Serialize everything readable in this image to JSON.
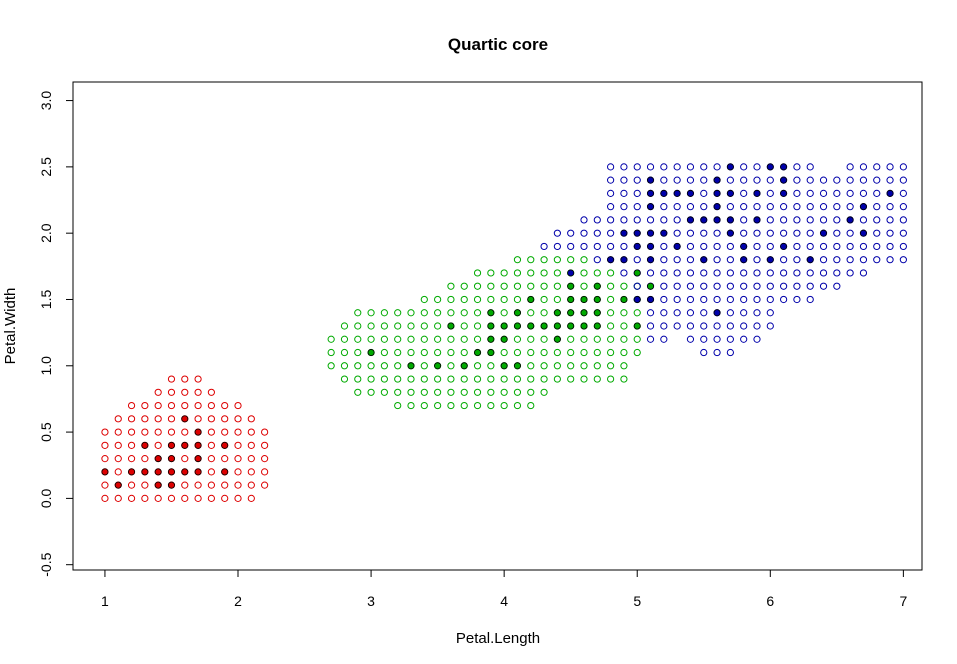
{
  "chart_data": {
    "type": "scatter",
    "title": "Quartic core",
    "xlabel": "Petal.Length",
    "ylabel": "Petal.Width",
    "xlim": [
      0.76,
      7.14
    ],
    "ylim": [
      -0.54,
      3.14
    ],
    "x_ticks": [
      1,
      2,
      3,
      4,
      5,
      6,
      7
    ],
    "y_ticks": [
      -0.5,
      0.0,
      0.5,
      1.0,
      1.5,
      2.0,
      2.5,
      3.0
    ],
    "x_tick_labels": [
      "1",
      "2",
      "3",
      "4",
      "5",
      "6",
      "7"
    ],
    "y_tick_labels": [
      "-0.5",
      "0.0",
      "0.5",
      "1.0",
      "1.5",
      "2.0",
      "2.5",
      "3.0"
    ],
    "grid": false,
    "grid_step": {
      "x": 0.1,
      "y": 0.1
    },
    "colors": {
      "setosa": "#dd0000",
      "versicolor": "#00aa00",
      "virginica": "#0000aa"
    },
    "series": [
      {
        "marker": "open-circle",
        "color": "#dd0000",
        "rows": [
          {
            "y": 0.0,
            "x_from": 1.0,
            "x_to": 2.1
          },
          {
            "y": 0.1,
            "x_from": 1.0,
            "x_to": 2.2
          },
          {
            "y": 0.2,
            "x_from": 1.0,
            "x_to": 2.2
          },
          {
            "y": 0.3,
            "x_from": 1.0,
            "x_to": 2.2
          },
          {
            "y": 0.4,
            "x_from": 1.0,
            "x_to": 2.2
          },
          {
            "y": 0.5,
            "x_from": 1.0,
            "x_to": 2.2
          },
          {
            "y": 0.6,
            "x_from": 1.1,
            "x_to": 2.1
          },
          {
            "y": 0.7,
            "x_from": 1.2,
            "x_to": 2.0
          },
          {
            "y": 0.8,
            "x_from": 1.4,
            "x_to": 1.8
          },
          {
            "y": 0.9,
            "x_from": 1.5,
            "x_to": 1.7
          }
        ]
      },
      {
        "marker": "open-circle",
        "color": "#00aa00",
        "rows": [
          {
            "y": 0.7,
            "x_from": 3.2,
            "x_to": 4.2
          },
          {
            "y": 0.8,
            "x_from": 2.9,
            "x_to": 4.3
          },
          {
            "y": 0.9,
            "x_from": 2.8,
            "x_to": 4.9
          },
          {
            "y": 1.0,
            "x_from": 2.7,
            "x_to": 4.9
          },
          {
            "y": 1.1,
            "x_from": 2.7,
            "x_to": 5.0
          },
          {
            "y": 1.2,
            "x_from": 2.7,
            "x_to": 5.0
          },
          {
            "y": 1.3,
            "x_from": 2.8,
            "x_to": 5.0
          },
          {
            "y": 1.4,
            "x_from": 2.9,
            "x_to": 5.0
          },
          {
            "y": 1.5,
            "x_from": 3.4,
            "x_to": 5.0
          },
          {
            "y": 1.6,
            "x_from": 3.6,
            "x_to": 5.0
          },
          {
            "y": 1.7,
            "x_from": 3.8,
            "x_to": 4.8
          },
          {
            "y": 1.8,
            "x_from": 4.1,
            "x_to": 4.6
          }
        ]
      },
      {
        "marker": "open-circle",
        "color": "#0000aa",
        "rows": [
          {
            "y": 1.1,
            "x_from": 5.5,
            "x_to": 5.7
          },
          {
            "y": 1.2,
            "x_from": 5.1,
            "x_to": 5.2
          },
          {
            "y": 1.2,
            "x_from": 5.4,
            "x_to": 5.9
          },
          {
            "y": 1.3,
            "x_from": 5.1,
            "x_to": 6.0
          },
          {
            "y": 1.4,
            "x_from": 5.1,
            "x_to": 6.0
          },
          {
            "y": 1.5,
            "x_from": 5.0,
            "x_to": 6.3
          },
          {
            "y": 1.6,
            "x_from": 5.0,
            "x_to": 6.5
          },
          {
            "y": 1.7,
            "x_from": 4.9,
            "x_to": 6.7
          },
          {
            "y": 1.8,
            "x_from": 4.7,
            "x_to": 7.0
          },
          {
            "y": 1.9,
            "x_from": 4.3,
            "x_to": 7.0
          },
          {
            "y": 2.0,
            "x_from": 4.4,
            "x_to": 7.0
          },
          {
            "y": 2.1,
            "x_from": 4.6,
            "x_to": 7.0
          },
          {
            "y": 2.2,
            "x_from": 4.8,
            "x_to": 7.0
          },
          {
            "y": 2.3,
            "x_from": 4.8,
            "x_to": 7.0
          },
          {
            "y": 2.4,
            "x_from": 4.8,
            "x_to": 7.0
          },
          {
            "y": 2.5,
            "x_from": 4.8,
            "x_to": 6.3
          },
          {
            "y": 2.5,
            "x_from": 6.6,
            "x_to": 7.0
          }
        ]
      }
    ],
    "filled_points": [
      {
        "color": "#dd0000",
        "points": [
          [
            1.1,
            0.1
          ],
          [
            1.4,
            0.1
          ],
          [
            1.5,
            0.1
          ],
          [
            1.0,
            0.2
          ],
          [
            1.2,
            0.2
          ],
          [
            1.3,
            0.2
          ],
          [
            1.4,
            0.2
          ],
          [
            1.5,
            0.2
          ],
          [
            1.6,
            0.2
          ],
          [
            1.7,
            0.2
          ],
          [
            1.9,
            0.2
          ],
          [
            1.4,
            0.3
          ],
          [
            1.5,
            0.3
          ],
          [
            1.7,
            0.3
          ],
          [
            1.3,
            0.4
          ],
          [
            1.5,
            0.4
          ],
          [
            1.6,
            0.4
          ],
          [
            1.7,
            0.4
          ],
          [
            1.9,
            0.4
          ],
          [
            1.7,
            0.5
          ],
          [
            1.6,
            0.6
          ]
        ]
      },
      {
        "color": "#00aa00",
        "points": [
          [
            3.3,
            1.0
          ],
          [
            3.5,
            1.0
          ],
          [
            3.7,
            1.0
          ],
          [
            4.0,
            1.0
          ],
          [
            4.1,
            1.0
          ],
          [
            3.0,
            1.1
          ],
          [
            3.8,
            1.1
          ],
          [
            3.9,
            1.1
          ],
          [
            3.9,
            1.2
          ],
          [
            4.0,
            1.2
          ],
          [
            4.4,
            1.2
          ],
          [
            3.6,
            1.3
          ],
          [
            3.9,
            1.3
          ],
          [
            4.0,
            1.3
          ],
          [
            4.1,
            1.3
          ],
          [
            4.2,
            1.3
          ],
          [
            4.3,
            1.3
          ],
          [
            4.4,
            1.3
          ],
          [
            4.5,
            1.3
          ],
          [
            4.6,
            1.3
          ],
          [
            4.7,
            1.3
          ],
          [
            5.0,
            1.3
          ],
          [
            3.9,
            1.4
          ],
          [
            4.1,
            1.4
          ],
          [
            4.4,
            1.4
          ],
          [
            4.5,
            1.4
          ],
          [
            4.6,
            1.4
          ],
          [
            4.7,
            1.4
          ],
          [
            4.2,
            1.5
          ],
          [
            4.5,
            1.5
          ],
          [
            4.6,
            1.5
          ],
          [
            4.7,
            1.5
          ],
          [
            4.9,
            1.5
          ],
          [
            4.5,
            1.6
          ],
          [
            4.7,
            1.6
          ],
          [
            5.1,
            1.6
          ],
          [
            5.0,
            1.7
          ]
        ]
      },
      {
        "color": "#0000aa",
        "points": [
          [
            5.6,
            1.4
          ],
          [
            5.0,
            1.5
          ],
          [
            5.1,
            1.5
          ],
          [
            4.5,
            1.7
          ],
          [
            4.8,
            1.8
          ],
          [
            4.9,
            1.8
          ],
          [
            5.1,
            1.8
          ],
          [
            5.5,
            1.8
          ],
          [
            5.8,
            1.8
          ],
          [
            6.0,
            1.8
          ],
          [
            6.3,
            1.8
          ],
          [
            5.0,
            1.9
          ],
          [
            5.1,
            1.9
          ],
          [
            5.3,
            1.9
          ],
          [
            5.8,
            1.9
          ],
          [
            6.1,
            1.9
          ],
          [
            4.9,
            2.0
          ],
          [
            5.0,
            2.0
          ],
          [
            5.1,
            2.0
          ],
          [
            5.2,
            2.0
          ],
          [
            5.7,
            2.0
          ],
          [
            6.4,
            2.0
          ],
          [
            6.7,
            2.0
          ],
          [
            5.4,
            2.1
          ],
          [
            5.5,
            2.1
          ],
          [
            5.6,
            2.1
          ],
          [
            5.7,
            2.1
          ],
          [
            5.9,
            2.1
          ],
          [
            6.6,
            2.1
          ],
          [
            5.1,
            2.2
          ],
          [
            5.6,
            2.2
          ],
          [
            6.7,
            2.2
          ],
          [
            5.1,
            2.3
          ],
          [
            5.2,
            2.3
          ],
          [
            5.3,
            2.3
          ],
          [
            5.4,
            2.3
          ],
          [
            5.6,
            2.3
          ],
          [
            5.7,
            2.3
          ],
          [
            5.9,
            2.3
          ],
          [
            6.1,
            2.3
          ],
          [
            6.9,
            2.3
          ],
          [
            5.1,
            2.4
          ],
          [
            5.6,
            2.4
          ],
          [
            6.1,
            2.4
          ],
          [
            5.7,
            2.5
          ],
          [
            6.0,
            2.5
          ],
          [
            6.1,
            2.5
          ]
        ]
      }
    ]
  }
}
